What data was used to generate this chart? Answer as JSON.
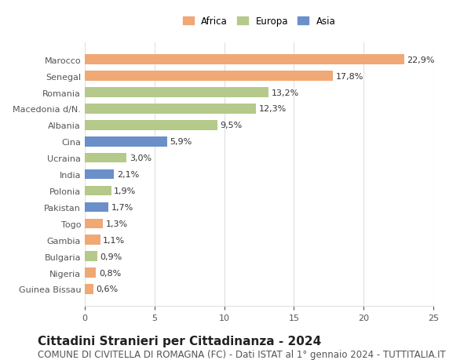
{
  "countries": [
    "Guinea Bissau",
    "Nigeria",
    "Bulgaria",
    "Gambia",
    "Togo",
    "Pakistan",
    "Polonia",
    "India",
    "Ucraina",
    "Cina",
    "Albania",
    "Macedonia d/N.",
    "Romania",
    "Senegal",
    "Marocco"
  ],
  "values": [
    0.6,
    0.8,
    0.9,
    1.1,
    1.3,
    1.7,
    1.9,
    2.1,
    3.0,
    5.9,
    9.5,
    12.3,
    13.2,
    17.8,
    22.9
  ],
  "continents": [
    "Africa",
    "Africa",
    "Europa",
    "Africa",
    "Africa",
    "Asia",
    "Europa",
    "Asia",
    "Europa",
    "Asia",
    "Europa",
    "Europa",
    "Europa",
    "Africa",
    "Africa"
  ],
  "labels": [
    "0,6%",
    "0,8%",
    "0,9%",
    "1,1%",
    "1,3%",
    "1,7%",
    "1,9%",
    "2,1%",
    "3,0%",
    "5,9%",
    "9,5%",
    "12,3%",
    "13,2%",
    "17,8%",
    "22,9%"
  ],
  "colors": {
    "Africa": "#f0a875",
    "Europa": "#b5c98a",
    "Asia": "#6b8fc9"
  },
  "legend_labels": [
    "Africa",
    "Europa",
    "Asia"
  ],
  "title": "Cittadini Stranieri per Cittadinanza - 2024",
  "subtitle": "COMUNE DI CIVITELLA DI ROMAGNA (FC) - Dati ISTAT al 1° gennaio 2024 - TUTTITALIA.IT",
  "xlim": [
    0,
    25
  ],
  "xticks": [
    0,
    5,
    10,
    15,
    20,
    25
  ],
  "background_color": "#ffffff",
  "grid_color": "#e0e0e0",
  "title_fontsize": 11,
  "subtitle_fontsize": 8.5,
  "label_fontsize": 8,
  "bar_height": 0.6
}
